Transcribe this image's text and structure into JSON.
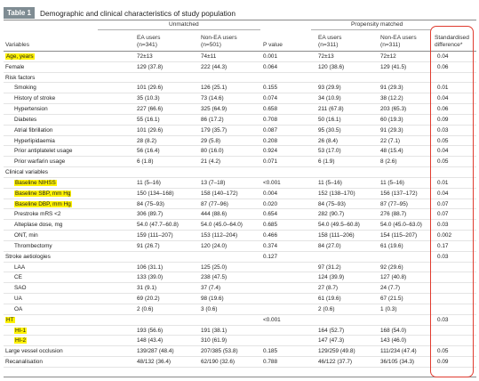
{
  "table": {
    "number": "Table 1",
    "caption": "Demographic and clinical characteristics of study population",
    "group_unmatched": "Unmatched",
    "group_matched": "Propensity matched",
    "headers": {
      "variables": "Variables",
      "ea_users_1_a": "EA users",
      "ea_users_1_b": "(n=341)",
      "non_ea_users_1_a": "Non-EA users",
      "non_ea_users_1_b": "(n=501)",
      "p_value": "P value",
      "ea_users_2_a": "EA users",
      "ea_users_2_b": "(n=311)",
      "non_ea_users_2_a": "Non-EA users",
      "non_ea_users_2_b": "(n=311)",
      "std_diff_a": "Standardised",
      "std_diff_b": "difference*"
    },
    "highlight_color": "#fff200",
    "box_color": "#e03b2f",
    "rows": [
      {
        "variable": "Age, years",
        "ea1": "72±13",
        "nea1": "74±11",
        "p": "0.001",
        "ea2": "72±13",
        "nea2": "72±12",
        "sd": "0.04",
        "highlight": true,
        "indent": false
      },
      {
        "variable": "Female",
        "ea1": "129 (37.8)",
        "nea1": "222 (44.3)",
        "p": "0.064",
        "ea2": "120 (38.6)",
        "nea2": "129 (41.5)",
        "sd": "0.06",
        "highlight": false,
        "indent": false
      },
      {
        "variable": "Risk factors",
        "ea1": "",
        "nea1": "",
        "p": "",
        "ea2": "",
        "nea2": "",
        "sd": "",
        "highlight": false,
        "indent": false
      },
      {
        "variable": "Smoking",
        "ea1": "101 (29.6)",
        "nea1": "126 (25.1)",
        "p": "0.155",
        "ea2": "93 (29.9)",
        "nea2": "91 (29.3)",
        "sd": "0.01",
        "highlight": false,
        "indent": true
      },
      {
        "variable": "History of stroke",
        "ea1": "35 (10.3)",
        "nea1": "73 (14.6)",
        "p": "0.074",
        "ea2": "34 (10.9)",
        "nea2": "38 (12.2)",
        "sd": "0.04",
        "highlight": false,
        "indent": true
      },
      {
        "variable": "Hypertension",
        "ea1": "227 (66.6)",
        "nea1": "325 (64.9)",
        "p": "0.658",
        "ea2": "211 (67.8)",
        "nea2": "203 (65.3)",
        "sd": "0.06",
        "highlight": false,
        "indent": true
      },
      {
        "variable": "Diabetes",
        "ea1": "55 (16.1)",
        "nea1": "86 (17.2)",
        "p": "0.708",
        "ea2": "50 (16.1)",
        "nea2": "60 (19.3)",
        "sd": "0.09",
        "highlight": false,
        "indent": true
      },
      {
        "variable": "Atrial fibrillation",
        "ea1": "101 (29.6)",
        "nea1": "179 (35.7)",
        "p": "0.087",
        "ea2": "95 (30.5)",
        "nea2": "91 (29.3)",
        "sd": "0.03",
        "highlight": false,
        "indent": true
      },
      {
        "variable": "Hyperlipidaemia",
        "ea1": "28 (8.2)",
        "nea1": "29 (5.8)",
        "p": "0.208",
        "ea2": "26 (8.4)",
        "nea2": "22 (7.1)",
        "sd": "0.05",
        "highlight": false,
        "indent": true
      },
      {
        "variable": "Prior antiplatelet usage",
        "ea1": "56 (16.4)",
        "nea1": "80 (16.0)",
        "p": "0.924",
        "ea2": "53 (17.0)",
        "nea2": "48 (15.4)",
        "sd": "0.04",
        "highlight": false,
        "indent": true
      },
      {
        "variable": "Prior warfarin usage",
        "ea1": "6 (1.8)",
        "nea1": "21 (4.2)",
        "p": "0.071",
        "ea2": "6 (1.9)",
        "nea2": "8 (2.6)",
        "sd": "0.05",
        "highlight": false,
        "indent": true
      },
      {
        "variable": "Clinical variables",
        "ea1": "",
        "nea1": "",
        "p": "",
        "ea2": "",
        "nea2": "",
        "sd": "",
        "highlight": false,
        "indent": false
      },
      {
        "variable": "Baseline NIHSS",
        "ea1": "11 (5–16)",
        "nea1": "13 (7–18)",
        "p": "<0.001",
        "ea2": "11 (5–16)",
        "nea2": "11 (5–16)",
        "sd": "0.01",
        "highlight": true,
        "indent": true
      },
      {
        "variable": "Baseline SBP, mm Hg",
        "ea1": "150 (134–168)",
        "nea1": "158 (140–172)",
        "p": "0.004",
        "ea2": "152 (138–170)",
        "nea2": "156 (137–172)",
        "sd": "0.04",
        "highlight": true,
        "indent": true
      },
      {
        "variable": "Baseline DBP, mm Hg",
        "ea1": "84 (75–93)",
        "nea1": "87 (77–96)",
        "p": "0.020",
        "ea2": "84 (75–93)",
        "nea2": "87 (77–95)",
        "sd": "0.07",
        "highlight": true,
        "indent": true
      },
      {
        "variable": "Prestroke mRS <2",
        "ea1": "306 (89.7)",
        "nea1": "444 (88.6)",
        "p": "0.654",
        "ea2": "282 (90.7)",
        "nea2": "276 (88.7)",
        "sd": "0.07",
        "highlight": false,
        "indent": true
      },
      {
        "variable": "Alteplase dose, mg",
        "ea1": "54.0 (47.7–60.8)",
        "nea1": "54.0 (45.0–64.0)",
        "p": "0.685",
        "ea2": "54.0 (49.5–60.8)",
        "nea2": "54.0 (45.0–63.0)",
        "sd": "0.03",
        "highlight": false,
        "indent": true
      },
      {
        "variable": "ONT, min",
        "ea1": "159 (111–207)",
        "nea1": "153 (112–204)",
        "p": "0.466",
        "ea2": "158 (111–206)",
        "nea2": "154 (115–207)",
        "sd": "0.002",
        "highlight": false,
        "indent": true
      },
      {
        "variable": "Thrombectomy",
        "ea1": "91 (26.7)",
        "nea1": "120 (24.0)",
        "p": "0.374",
        "ea2": "84 (27.0)",
        "nea2": "61 (19.6)",
        "sd": "0.17",
        "highlight": false,
        "indent": true
      },
      {
        "variable": "Stroke aetiologies",
        "ea1": "",
        "nea1": "",
        "p": "0.127",
        "ea2": "",
        "nea2": "",
        "sd": "0.03",
        "highlight": false,
        "indent": false
      },
      {
        "variable": "LAA",
        "ea1": "106 (31.1)",
        "nea1": "125 (25.0)",
        "p": "",
        "ea2": "97 (31.2)",
        "nea2": "92 (29.6)",
        "sd": "",
        "highlight": false,
        "indent": true
      },
      {
        "variable": "CE",
        "ea1": "133 (39.0)",
        "nea1": "238 (47.5)",
        "p": "",
        "ea2": "124 (39.9)",
        "nea2": "127 (40.8)",
        "sd": "",
        "highlight": false,
        "indent": true
      },
      {
        "variable": "SAO",
        "ea1": "31 (9.1)",
        "nea1": "37 (7.4)",
        "p": "",
        "ea2": "27 (8.7)",
        "nea2": "24 (7.7)",
        "sd": "",
        "highlight": false,
        "indent": true
      },
      {
        "variable": "UA",
        "ea1": "69 (20.2)",
        "nea1": "98 (19.6)",
        "p": "",
        "ea2": "61 (19.6)",
        "nea2": "67 (21.5)",
        "sd": "",
        "highlight": false,
        "indent": true
      },
      {
        "variable": "OA",
        "ea1": "2 (0.6)",
        "nea1": "3 (0.6)",
        "p": "",
        "ea2": "2 (0.6)",
        "nea2": "1 (0.3)",
        "sd": "",
        "highlight": false,
        "indent": true
      },
      {
        "variable": "HT",
        "ea1": "",
        "nea1": "",
        "p": "<0.001",
        "ea2": "",
        "nea2": "",
        "sd": "0.03",
        "highlight": true,
        "indent": false
      },
      {
        "variable": "HI-1",
        "ea1": "193 (56.6)",
        "nea1": "191 (38.1)",
        "p": "",
        "ea2": "164 (52.7)",
        "nea2": "168 (54.0)",
        "sd": "",
        "highlight": true,
        "indent": true
      },
      {
        "variable": "HI-2",
        "ea1": "148 (43.4)",
        "nea1": "310 (61.9)",
        "p": "",
        "ea2": "147 (47.3)",
        "nea2": "143 (46.0)",
        "sd": "",
        "highlight": true,
        "indent": true
      },
      {
        "variable": "Large vessel occlusion",
        "ea1": "139/287 (48.4)",
        "nea1": "207/385 (53.8)",
        "p": "0.185",
        "ea2": "129/259 (49.8)",
        "nea2": "111/234 (47.4)",
        "sd": "0.05",
        "highlight": false,
        "indent": false
      },
      {
        "variable": "Recanalisation",
        "ea1": "48/132 (36.4)",
        "nea1": "62/190 (32.6)",
        "p": "0.788",
        "ea2": "46/122 (37.7)",
        "nea2": "36/105 (34.3)",
        "sd": "0.09",
        "highlight": false,
        "indent": false
      }
    ]
  }
}
